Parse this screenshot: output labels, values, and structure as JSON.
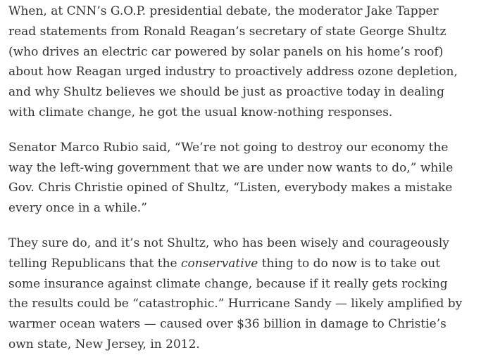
{
  "paragraphs": [
    {
      "lines": [
        "When, at CNN’s G.O.P. presidential debate, the moderator Jake Tapper",
        "read statements from Ronald Reagan’s secretary of state George Shultz",
        "(who drives an electric car powered by solar panels on his home’s roof)",
        "about how Reagan urged industry to proactively address ozone depletion,",
        "and why Shultz believes we should be just as proactive today in dealing",
        "with climate change, he got the usual know-nothing responses."
      ]
    },
    {
      "lines": [
        "Senator Marco Rubio said, “We’re not going to destroy our economy the",
        "way the left-wing government that we are under now wants to do,” while",
        "Gov. Chris Christie opined of Shultz, “Listen, everybody makes a mistake",
        "every once in a while.”"
      ]
    },
    {
      "lines": [
        "They sure do, and it’s not Shultz, who has been wisely and courageously",
        [
          "telling Republicans that the ",
          "conservative",
          " thing to do now is to take out"
        ],
        "some insurance against climate change, because if it really gets rocking",
        "the results could be “catastrophic.” Hurricane Sandy — likely amplified by",
        "warmer ocean waters — caused over $36 billion in damage to Christie’s",
        "own state, New Jersey, in 2012."
      ]
    }
  ]
}
